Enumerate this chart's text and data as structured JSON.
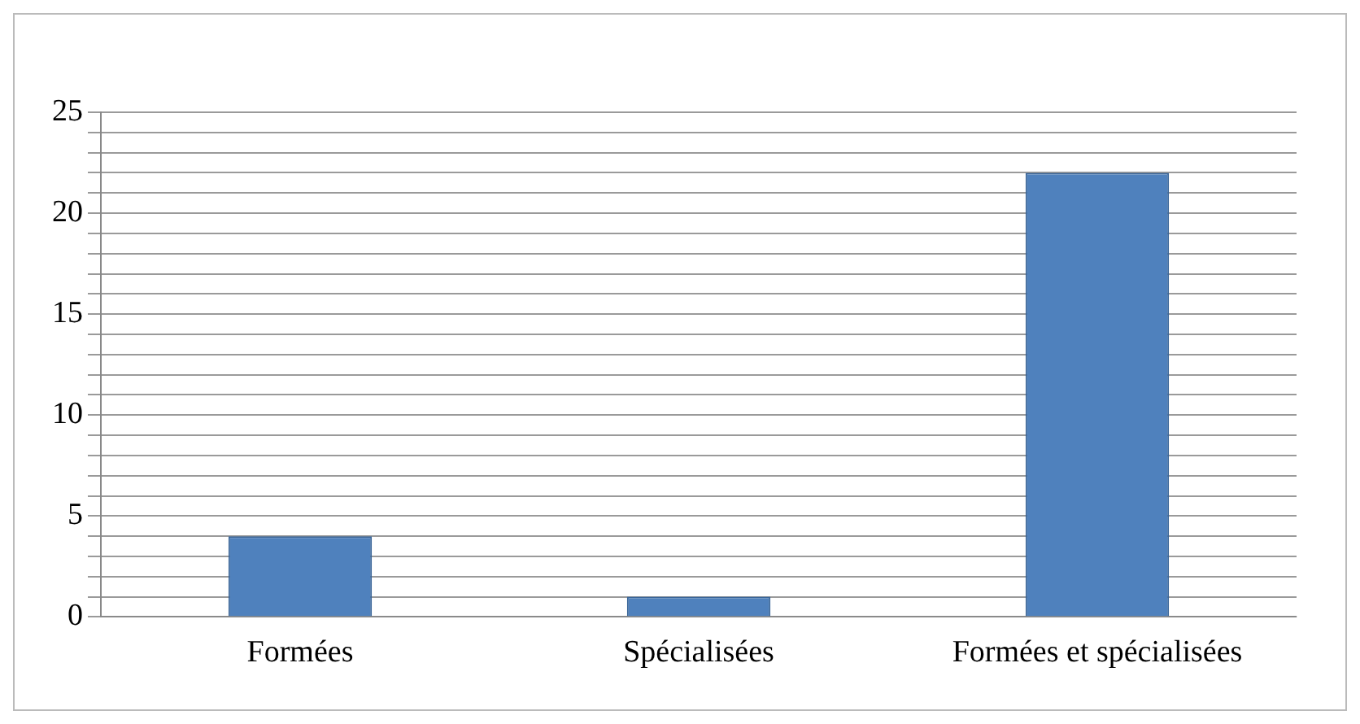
{
  "chart_data": {
    "type": "bar",
    "categories": [
      "Formées",
      "Spécialisées",
      "Formées et spécialisées"
    ],
    "values": [
      4,
      1,
      22
    ],
    "color": "#4f81bd",
    "ylim": [
      0,
      25
    ],
    "yticks": [
      0,
      {
        "value": 1,
        "label": null
      },
      {
        "value": 2,
        "label": null
      },
      {
        "value": 3,
        "label": null
      },
      {
        "value": 4,
        "label": null
      },
      5,
      {
        "value": 6,
        "label": null
      },
      {
        "value": 7,
        "label": null
      },
      {
        "value": 8,
        "label": null
      },
      {
        "value": 9,
        "label": null
      },
      10,
      {
        "value": 11,
        "label": null
      },
      {
        "value": 12,
        "label": null
      },
      {
        "value": 13,
        "label": null
      },
      {
        "value": 14,
        "label": null
      },
      15,
      {
        "value": 16,
        "label": null
      },
      {
        "value": 17,
        "label": null
      },
      {
        "value": 18,
        "label": null
      },
      {
        "value": 19,
        "label": null
      },
      20,
      {
        "value": 21,
        "label": null
      },
      {
        "value": 22,
        "label": null
      },
      {
        "value": 23,
        "label": null
      },
      {
        "value": 24,
        "label": null
      },
      25
    ],
    "grid": true
  }
}
